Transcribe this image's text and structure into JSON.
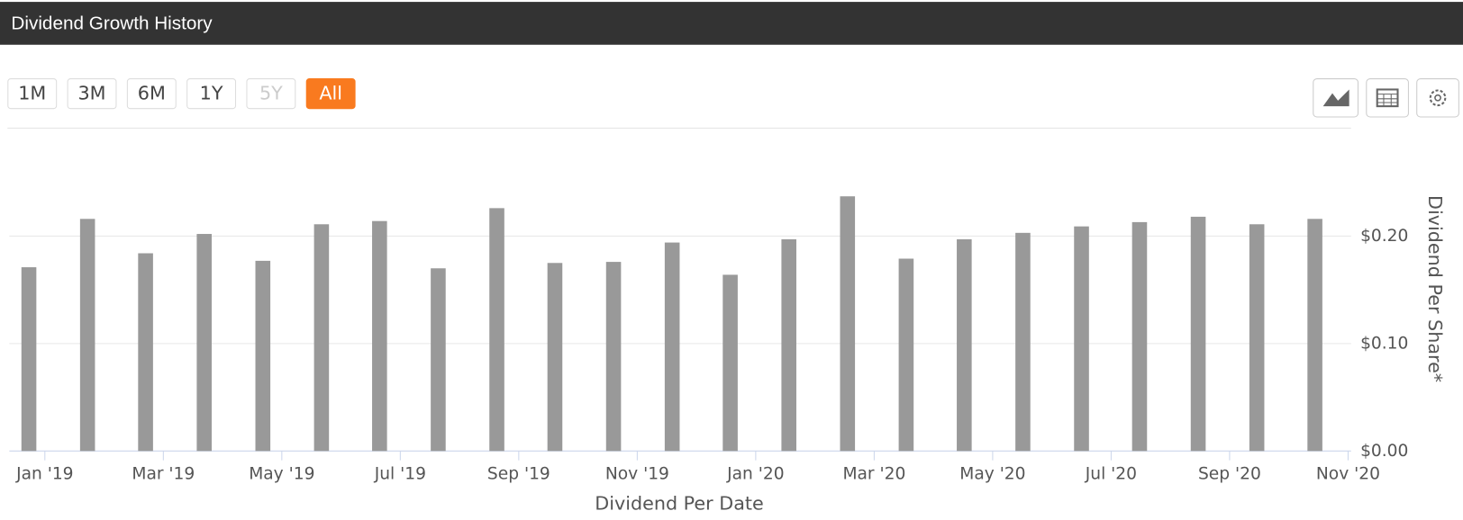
{
  "chart_data": {
    "type": "bar",
    "title": "Dividend Growth History",
    "x_title": "Dividend Per Date",
    "y_title": "Dividend Per Share*",
    "range_buttons": [
      "1M",
      "3M",
      "6M",
      "1Y",
      "5Y",
      "All"
    ],
    "range_selected": "All",
    "x": [
      -0.27,
      0.72,
      1.7,
      2.69,
      3.68,
      4.67,
      5.65,
      6.64,
      7.63,
      8.61,
      9.6,
      10.59,
      11.57,
      12.56,
      13.55,
      14.54,
      15.52,
      16.51,
      17.5,
      18.48,
      19.47,
      20.46,
      21.44
    ],
    "values": [
      0.171,
      0.216,
      0.184,
      0.202,
      0.177,
      0.211,
      0.214,
      0.17,
      0.226,
      0.175,
      0.176,
      0.194,
      0.164,
      0.197,
      0.237,
      0.179,
      0.197,
      0.203,
      0.209,
      0.213,
      0.218,
      0.211,
      0.216
    ],
    "color": "#999999",
    "xlim": [
      -0.6,
      22.05
    ],
    "xticks": [
      {
        "value": 0,
        "label": "Jan '19"
      },
      {
        "value": 2,
        "label": "Mar '19"
      },
      {
        "value": 4,
        "label": "May '19"
      },
      {
        "value": 6,
        "label": "Jul '19"
      },
      {
        "value": 8,
        "label": "Sep '19"
      },
      {
        "value": 10,
        "label": "Nov '19"
      },
      {
        "value": 12,
        "label": "Jan '20"
      },
      {
        "value": 14,
        "label": "Mar '20"
      },
      {
        "value": 16,
        "label": "May '20"
      },
      {
        "value": 18,
        "label": "Jul '20"
      },
      {
        "value": 20,
        "label": "Sep '20"
      },
      {
        "value": 22,
        "label": "Nov '20"
      }
    ],
    "ylim": [
      0,
      0.3
    ],
    "yticks": [
      {
        "value": 0,
        "label": "$0.00"
      },
      {
        "value": 0.1,
        "label": "$0.10"
      },
      {
        "value": 0.2,
        "label": "$0.20"
      }
    ],
    "grid": true
  }
}
